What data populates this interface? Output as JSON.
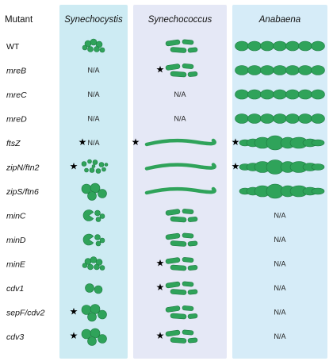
{
  "header": {
    "mutant": "Mutant",
    "species": [
      "Synechocystis",
      "Synechococcus",
      "Anabaena"
    ]
  },
  "na_label": "N/A",
  "star_label": "★",
  "colors": {
    "cell_fill": "#2fa35a",
    "cell_edge": "#1d7a40",
    "panel_synechocystis": "#cdebf3",
    "panel_synechococcus": "#e5e8f6",
    "panel_anabaena": "#d6ecf8"
  },
  "rows": [
    {
      "mutant": "WT",
      "cells": [
        "cluster",
        "rods",
        "chain"
      ]
    },
    {
      "mutant": "mreB",
      "cells": [
        "na",
        "rods*",
        "chain"
      ]
    },
    {
      "mutant": "mreC",
      "cells": [
        "na",
        "na",
        "chain"
      ]
    },
    {
      "mutant": "mreD",
      "cells": [
        "na",
        "na",
        "chain"
      ]
    },
    {
      "mutant": "ftsZ",
      "cells": [
        "na*",
        "filament*",
        "swollen*"
      ]
    },
    {
      "mutant": "zipN/ftn2",
      "cells": [
        "mixed*",
        "filament",
        "swollen*"
      ]
    },
    {
      "mutant": "zipS/ftn6",
      "cells": [
        "large",
        "filament",
        "swollen"
      ]
    },
    {
      "mutant": "minC",
      "cells": [
        "pacman",
        "rods",
        "na"
      ]
    },
    {
      "mutant": "minD",
      "cells": [
        "pacman",
        "rods",
        "na"
      ]
    },
    {
      "mutant": "minE",
      "cells": [
        "cluster",
        "rods*",
        "na"
      ]
    },
    {
      "mutant": "cdv1",
      "cells": [
        "pair",
        "rods*",
        "na"
      ]
    },
    {
      "mutant": "sepF/cdv2",
      "cells": [
        "large*",
        "rods",
        "na"
      ]
    },
    {
      "mutant": "cdv3",
      "cells": [
        "large*",
        "rods*",
        "na"
      ]
    }
  ]
}
